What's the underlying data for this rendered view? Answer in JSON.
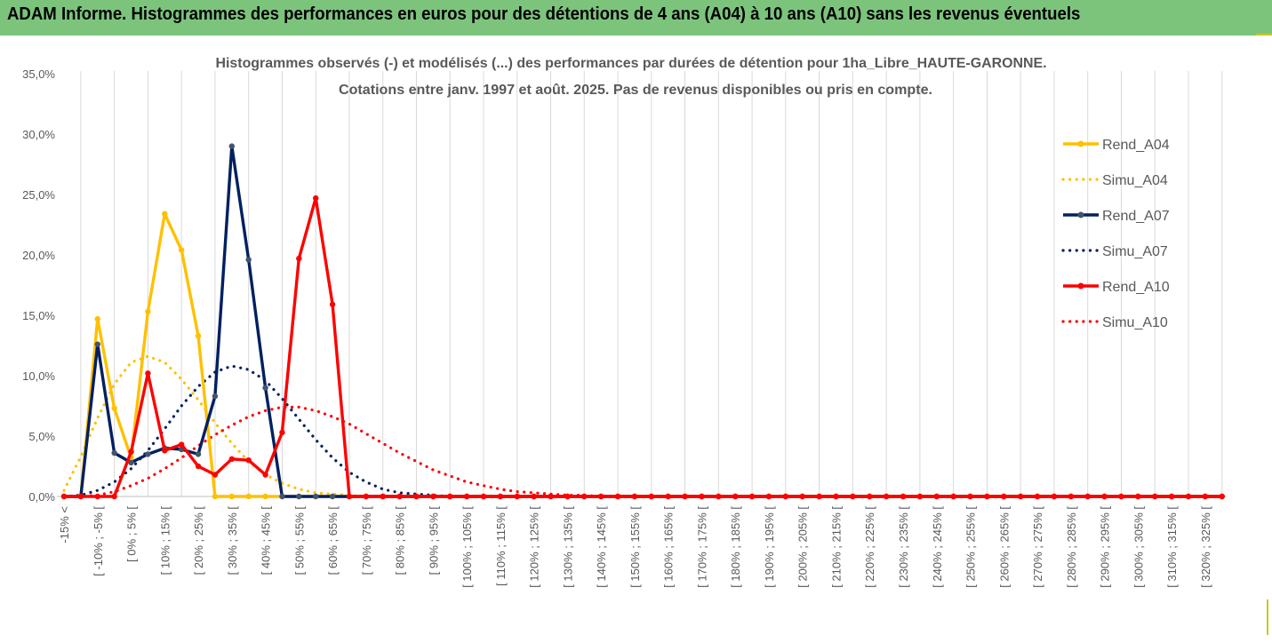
{
  "header": {
    "title": "ADAM Informe. Histogrammes des performances en euros pour des détentions de 4 ans (A04) à 10 ans (A10) sans les revenus éventuels"
  },
  "colors": {
    "header_bg": "#7cc47c",
    "a04": "#ffc000",
    "a07": "#002060",
    "a07_marker": "#44546a",
    "a10": "#ff0000",
    "grid": "#d9d9d9"
  },
  "chart_data": {
    "type": "line",
    "title_line1": "Histogrammes observés (-) et modélisés (...) des performances par durées de détention pour 1ha_Libre_HAUTE-GARONNE.",
    "title_line2": "Cotations entre janv. 1997 et août. 2025. Pas de revenus disponibles ou pris en compte.",
    "y_ticks": [
      "0,0%",
      "5,0%",
      "10,0%",
      "15,0%",
      "20,0%",
      "25,0%",
      "30,0%",
      "35,0%"
    ],
    "ylim": [
      0,
      35
    ],
    "grid": "vertical",
    "legend_position": "right",
    "categories": [
      "-15% <",
      "[ -15% ; -10% [",
      "[ -10% ; -5% [",
      "[ -5% ; 0% [",
      "[ 0% ; 5% [",
      "[ 5% ; 10% [",
      "[ 10% ; 15% [",
      "[ 15% ; 20% [",
      "[ 20% ; 25% [",
      "[ 25% ; 30% [",
      "[ 30% ; 35% [",
      "[ 35% ; 40% [",
      "[ 40% ; 45% [",
      "[ 45% ; 50% [",
      "[ 50% ; 55% [",
      "[ 55% ; 60% [",
      "[ 60% ; 65% [",
      "[ 65% ; 70% [",
      "[ 70% ; 75% [",
      "[ 75% ; 80% [",
      "[ 80% ; 85% [",
      "[ 85% ; 90% [",
      "[ 90% ; 95% [",
      "[ 95% ; 100% [",
      "[ 100% ; 105% [",
      "[ 105% ; 110% [",
      "[ 110% ; 115% [",
      "[ 115% ; 120% [",
      "[ 120% ; 125% [",
      "[ 125% ; 130% [",
      "[ 130% ; 135% [",
      "[ 135% ; 140% [",
      "[ 140% ; 145% [",
      "[ 145% ; 150% [",
      "[ 150% ; 155% [",
      "[ 155% ; 160% [",
      "[ 160% ; 165% [",
      "[ 165% ; 170% [",
      "[ 170% ; 175% [",
      "[ 175% ; 180% [",
      "[ 180% ; 185% [",
      "[ 185% ; 190% [",
      "[ 190% ; 195% [",
      "[ 195% ; 200% [",
      "[ 200% ; 205% [",
      "[ 205% ; 210% [",
      "[ 210% ; 215% [",
      "[ 215% ; 220% [",
      "[ 220% ; 225% [",
      "[ 225% ; 230% [",
      "[ 230% ; 235% [",
      "[ 235% ; 240% [",
      "[ 240% ; 245% [",
      "[ 245% ; 250% [",
      "[ 250% ; 255% [",
      "[ 255% ; 260% [",
      "[ 260% ; 265% [",
      "[ 265% ; 270% [",
      "[ 270% ; 275% [",
      "[ 275% ; 280% [",
      "[ 280% ; 285% [",
      "[ 285% ; 290% [",
      "[ 290% ; 295% [",
      "[ 295% ; 300% [",
      "[ 300% ; 305% [",
      "[ 305% ; 310% [",
      "[ 310% ; 315% [",
      "[ 315% ; 320% [",
      "[ 320% ; 325% [",
      "[ 325% ; 330% ["
    ],
    "series": [
      {
        "name": "Rend_A04",
        "style": "solid",
        "color": "#ffc000",
        "values": [
          0,
          0,
          14.7,
          7.3,
          3.2,
          15.3,
          23.4,
          20.4,
          13.3,
          0,
          0,
          0,
          0,
          0,
          0,
          0,
          0,
          0,
          0,
          0,
          0,
          0,
          0,
          0,
          0,
          0,
          0,
          0,
          0,
          0,
          0,
          0,
          0,
          0,
          0,
          0,
          0,
          0,
          0,
          0,
          0,
          0,
          0,
          0,
          0,
          0,
          0,
          0,
          0,
          0,
          0,
          0,
          0,
          0,
          0,
          0,
          0,
          0,
          0,
          0,
          0,
          0,
          0,
          0,
          0,
          0,
          0,
          0,
          0,
          0
        ]
      },
      {
        "name": "Simu_A04",
        "style": "dotted",
        "color": "#ffc000",
        "values": [
          0.5,
          3.3,
          6.5,
          9.3,
          11.1,
          11.6,
          11.1,
          9.7,
          8.0,
          6.1,
          4.4,
          2.9,
          1.8,
          1.1,
          0.6,
          0.3,
          0.2,
          0.1,
          0,
          0,
          0,
          0,
          0,
          0,
          0,
          0,
          0,
          0,
          0,
          0,
          0,
          0,
          0,
          0,
          0,
          0,
          0,
          0,
          0,
          0,
          0,
          0,
          0,
          0,
          0,
          0,
          0,
          0,
          0,
          0,
          0,
          0,
          0,
          0,
          0,
          0,
          0,
          0,
          0,
          0,
          0,
          0,
          0,
          0,
          0,
          0,
          0,
          0,
          0,
          0
        ]
      },
      {
        "name": "Rend_A07",
        "style": "solid",
        "color": "#002060",
        "values": [
          0,
          0,
          12.6,
          3.6,
          2.8,
          3.5,
          4.0,
          3.9,
          3.5,
          8.3,
          29.0,
          19.6,
          9.0,
          0,
          0,
          0,
          0,
          0,
          0,
          0,
          0,
          0,
          0,
          0,
          0,
          0,
          0,
          0,
          0,
          0,
          0,
          0,
          0,
          0,
          0,
          0,
          0,
          0,
          0,
          0,
          0,
          0,
          0,
          0,
          0,
          0,
          0,
          0,
          0,
          0,
          0,
          0,
          0,
          0,
          0,
          0,
          0,
          0,
          0,
          0,
          0,
          0,
          0,
          0,
          0,
          0,
          0,
          0,
          0,
          0
        ]
      },
      {
        "name": "Simu_A07",
        "style": "dotted",
        "color": "#002060",
        "values": [
          0,
          0.1,
          0.5,
          1.2,
          2.3,
          3.8,
          5.6,
          7.5,
          9.1,
          10.3,
          10.8,
          10.5,
          9.6,
          8.1,
          6.4,
          4.7,
          3.2,
          2.0,
          1.2,
          0.6,
          0.3,
          0.2,
          0.1,
          0,
          0,
          0,
          0,
          0,
          0,
          0,
          0,
          0,
          0,
          0,
          0,
          0,
          0,
          0,
          0,
          0,
          0,
          0,
          0,
          0,
          0,
          0,
          0,
          0,
          0,
          0,
          0,
          0,
          0,
          0,
          0,
          0,
          0,
          0,
          0,
          0,
          0,
          0,
          0,
          0,
          0,
          0,
          0,
          0,
          0,
          0
        ]
      },
      {
        "name": "Rend_A10",
        "style": "solid",
        "color": "#ff0000",
        "values": [
          0,
          0,
          0,
          0,
          3.7,
          10.2,
          3.8,
          4.3,
          2.5,
          1.8,
          3.1,
          3.0,
          1.8,
          5.3,
          19.7,
          24.7,
          15.9,
          0,
          0,
          0,
          0,
          0,
          0,
          0,
          0,
          0,
          0,
          0,
          0,
          0,
          0,
          0,
          0,
          0,
          0,
          0,
          0,
          0,
          0,
          0,
          0,
          0,
          0,
          0,
          0,
          0,
          0,
          0,
          0,
          0,
          0,
          0,
          0,
          0,
          0,
          0,
          0,
          0,
          0,
          0,
          0,
          0,
          0,
          0,
          0,
          0,
          0,
          0,
          0,
          0
        ]
      },
      {
        "name": "Simu_A10",
        "style": "dotted",
        "color": "#ff0000",
        "values": [
          0,
          0,
          0.1,
          0.4,
          0.9,
          1.5,
          2.3,
          3.2,
          4.2,
          5.1,
          5.9,
          6.6,
          7.1,
          7.4,
          7.4,
          7.1,
          6.6,
          6.0,
          5.2,
          4.4,
          3.6,
          2.9,
          2.2,
          1.7,
          1.2,
          0.9,
          0.6,
          0.4,
          0.3,
          0.2,
          0.1,
          0.1,
          0,
          0,
          0,
          0,
          0,
          0,
          0,
          0,
          0,
          0,
          0,
          0,
          0,
          0,
          0,
          0,
          0,
          0,
          0,
          0,
          0,
          0,
          0,
          0,
          0,
          0,
          0,
          0,
          0,
          0,
          0,
          0,
          0,
          0,
          0,
          0,
          0,
          0
        ]
      }
    ]
  }
}
